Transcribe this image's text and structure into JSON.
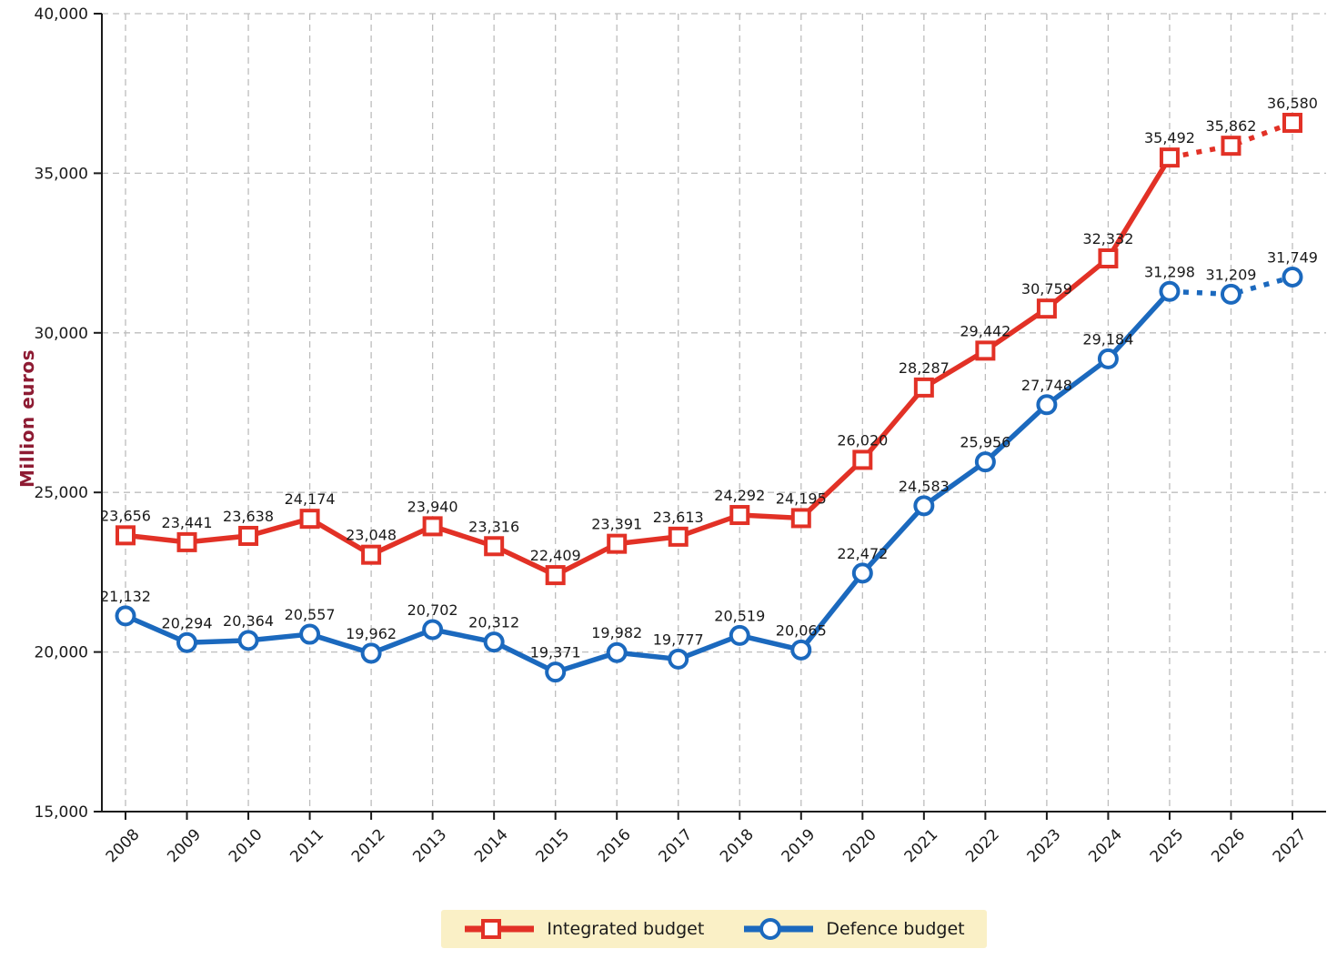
{
  "chart_data": {
    "type": "line",
    "title": "",
    "ylabel": "Million euros",
    "xlabel": "",
    "ylim": [
      15000,
      40000
    ],
    "y_tick_values": [
      15000,
      20000,
      25000,
      30000,
      35000,
      40000
    ],
    "grid": true,
    "legend_position": "bottom",
    "categories": [
      "2008",
      "2009",
      "2010",
      "2011",
      "2012",
      "2013",
      "2014",
      "2015",
      "2016",
      "2017",
      "2018",
      "2019",
      "2020",
      "2021",
      "2022",
      "2023",
      "2024",
      "2025",
      "2026",
      "2027"
    ],
    "series": [
      {
        "name": "Integrated budget",
        "marker": "square",
        "color": "#E23126",
        "dotted_from_index": 17,
        "values": [
          23656,
          23441,
          23638,
          24174,
          23048,
          23940,
          23316,
          22409,
          23391,
          23613,
          24292,
          24195,
          26020,
          28287,
          29442,
          30759,
          32332,
          35492,
          35862,
          36580
        ]
      },
      {
        "name": "Defence budget",
        "marker": "circle",
        "color": "#1B69BE",
        "dotted_from_index": 17,
        "values": [
          21132,
          20294,
          20364,
          20557,
          19962,
          20702,
          20312,
          19371,
          19982,
          19777,
          20519,
          20065,
          22472,
          24583,
          25956,
          27748,
          29184,
          31298,
          31209,
          31749
        ]
      }
    ],
    "colors": {
      "axis": "#1a1a1a",
      "grid": "#bdbdbd",
      "data_label": "#000000",
      "ylabel_color": "#8E1B33",
      "legend_background": "#FAF0C6",
      "marker_fill": "#ffffff"
    }
  }
}
